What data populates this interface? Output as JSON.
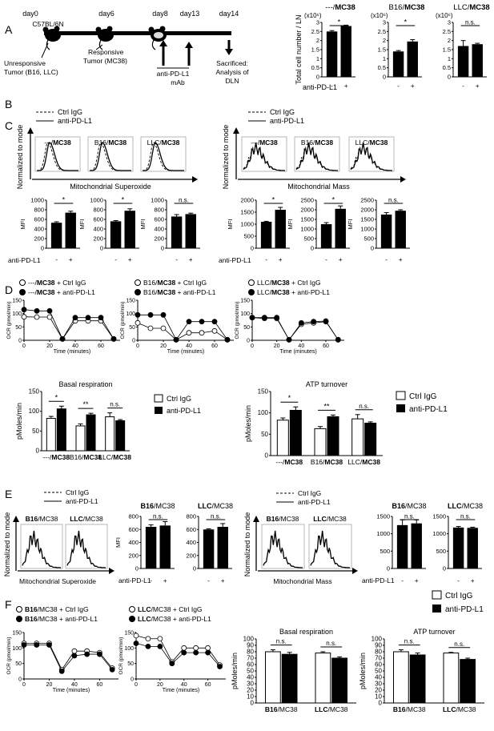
{
  "panel_letters": [
    "A",
    "B",
    "C",
    "D",
    "E",
    "F"
  ],
  "A": {
    "days": [
      "day0",
      "day6",
      "day8",
      "day13",
      "day14"
    ],
    "mouse_strain": "C57BL/6N",
    "unresponsive": [
      "Unresponsive",
      "Tumor (B16, LLC)"
    ],
    "responsive": [
      "Responsive",
      "Tumor (MC38)"
    ],
    "antibody": [
      "anti-PD-L1",
      "mAb"
    ],
    "sacrificed": [
      "Sacrificed:",
      "Analysis of",
      "DLN"
    ]
  },
  "common": {
    "anti_pdl1": "anti-PD-L1",
    "ctrl_igg": "Ctrl IgG",
    "minus": "-",
    "plus": "+",
    "ns": "n.s.",
    "star": "*",
    "double_star": "**",
    "mfi": "MFI",
    "normalized_to_mode": "Normalized to mode",
    "ocr_label": "OCR (pmol/min)",
    "time_label": "Time (minutes)",
    "pmoles_label": "pMoles/min",
    "x10_6": "(x10⁶)"
  },
  "B": {
    "ylabel": "Total cell number / LN",
    "titles": [
      [
        "---/",
        "MC38"
      ],
      [
        "B16/",
        "MC38"
      ],
      [
        "LLC/",
        "MC38"
      ]
    ],
    "x_caption": "anti-PD-L1"
  },
  "C": {
    "legend": [
      "Ctrl IgG",
      "anti-PD-L1"
    ],
    "hist_titles": [
      [
        "---/",
        "MC38"
      ],
      [
        "B16/",
        "MC38"
      ],
      [
        "LLC/",
        "MC38"
      ]
    ],
    "xlabel_left": "Mitochondrial Superoxide",
    "xlabel_right": "Mitochondrial Mass",
    "x_caption": "anti-PD-L1"
  },
  "D": {
    "legends": [
      [
        [
          "---/",
          "MC38",
          " + Ctrl IgG"
        ],
        [
          "---/",
          "MC38",
          " + anti-PD-L1"
        ]
      ],
      [
        [
          "B16/",
          "MC38",
          " + Ctrl IgG"
        ],
        [
          "B16/",
          "MC38",
          " + anti-PD-L1"
        ]
      ],
      [
        [
          "LLC/",
          "MC38",
          " + Ctrl IgG"
        ],
        [
          "LLC/",
          "MC38",
          " + anti-PD-L1"
        ]
      ]
    ],
    "basal_title": "Basal respiration",
    "atp_title": "ATP turnover",
    "group_labels": [
      [
        "---/",
        "MC38"
      ],
      [
        "B16/",
        "MC38"
      ],
      [
        "LLC/",
        "MC38"
      ]
    ]
  },
  "E": {
    "legend": [
      "Ctrl IgG",
      "anti-PD-L1"
    ],
    "hist_titles": [
      [
        "B16",
        "/MC38"
      ],
      [
        "LLC",
        "/MC38"
      ]
    ],
    "xlabel_left": "Mitochondrial Superoxide",
    "xlabel_right": "Mitochondrial Mass",
    "bar_titles": [
      [
        "B16",
        "/MC38"
      ],
      [
        "LLC",
        "/MC38"
      ]
    ],
    "x_caption": "anti-PD-L1"
  },
  "F": {
    "legends": [
      [
        [
          "B16",
          "/MC38 + Ctrl IgG"
        ],
        [
          "B16",
          "/MC38 + anti-PD-L1"
        ]
      ],
      [
        [
          "LLC",
          "/MC38 + Ctrl IgG"
        ],
        [
          "LLC",
          "/MC38 + anti-PD-L1"
        ]
      ]
    ],
    "basal_title": "Basal respiration",
    "atp_title": "ATP turnover",
    "group_labels": [
      [
        "B16",
        "/MC38"
      ],
      [
        "LLC",
        "/MC38"
      ]
    ],
    "legend": [
      "Ctrl IgG",
      "anti-PD-L1"
    ]
  },
  "chart_data": [
    {
      "id": "B1",
      "type": "bar",
      "title": "---/MC38",
      "categories": [
        "-",
        "+"
      ],
      "values": [
        2.5,
        2.8
      ],
      "errors": [
        0.05,
        0.05
      ],
      "ylim": [
        0,
        3
      ],
      "ticks": [
        0,
        0.5,
        1,
        1.5,
        2,
        2.5,
        3
      ],
      "yunit": "(x10⁶)",
      "sig": "*"
    },
    {
      "id": "B2",
      "type": "bar",
      "title": "B16/MC38",
      "categories": [
        "-",
        "+"
      ],
      "values": [
        1.4,
        1.95
      ],
      "errors": [
        0.05,
        0.1
      ],
      "ylim": [
        0,
        3
      ],
      "ticks": [
        0,
        0.5,
        1,
        1.5,
        2,
        2.5,
        3
      ],
      "yunit": "(x10⁶)",
      "sig": "*"
    },
    {
      "id": "B3",
      "type": "bar",
      "title": "LLC/MC38",
      "categories": [
        "-",
        "+"
      ],
      "values": [
        1.7,
        1.8
      ],
      "errors": [
        0.3,
        0.05
      ],
      "ylim": [
        0,
        3
      ],
      "ticks": [
        0,
        0.5,
        1,
        1.5,
        2,
        2.5,
        3
      ],
      "yunit": "(x10⁶)",
      "sig": "n.s."
    },
    {
      "id": "C1",
      "type": "bar",
      "ylabel": "MFI",
      "categories": [
        "-",
        "+"
      ],
      "values": [
        530,
        740
      ],
      "errors": [
        20,
        30
      ],
      "ylim": [
        0,
        1000
      ],
      "ticks": [
        0,
        200,
        400,
        600,
        800,
        1000
      ],
      "sig": "*"
    },
    {
      "id": "C2",
      "type": "bar",
      "ylabel": "MFI",
      "categories": [
        "-",
        "+"
      ],
      "values": [
        560,
        780
      ],
      "errors": [
        15,
        40
      ],
      "ylim": [
        0,
        1000
      ],
      "ticks": [
        0,
        200,
        400,
        600,
        800,
        1000
      ],
      "sig": "*"
    },
    {
      "id": "C3",
      "type": "bar",
      "ylabel": "MFI",
      "categories": [
        "-",
        "+"
      ],
      "values": [
        660,
        710
      ],
      "errors": [
        40,
        20
      ],
      "ylim": [
        0,
        1000
      ],
      "ticks": [
        0,
        200,
        400,
        600,
        800,
        1000
      ],
      "sig": "n.s."
    },
    {
      "id": "C4",
      "type": "bar",
      "ylabel": "MFI",
      "categories": [
        "-",
        "+"
      ],
      "values": [
        1100,
        1600
      ],
      "errors": [
        20,
        100
      ],
      "ylim": [
        0,
        2000
      ],
      "ticks": [
        0,
        500,
        1000,
        1500,
        2000
      ],
      "sig": "*"
    },
    {
      "id": "C5",
      "type": "bar",
      "ylabel": "MFI",
      "categories": [
        "-",
        "+"
      ],
      "values": [
        1250,
        2050
      ],
      "errors": [
        80,
        150
      ],
      "ylim": [
        0,
        2500
      ],
      "ticks": [
        0,
        500,
        1000,
        1500,
        2000,
        2500
      ],
      "sig": "*"
    },
    {
      "id": "C6",
      "type": "bar",
      "ylabel": "MFI",
      "categories": [
        "-",
        "+"
      ],
      "values": [
        1750,
        1950
      ],
      "errors": [
        100,
        50
      ],
      "ylim": [
        0,
        2500
      ],
      "ticks": [
        0,
        500,
        1000,
        1500,
        2000,
        2500
      ],
      "sig": "n.s."
    },
    {
      "id": "D1",
      "type": "line",
      "x": [
        0,
        10,
        20,
        30,
        40,
        50,
        60,
        70
      ],
      "series": [
        {
          "name": "Ctrl IgG",
          "values": [
            88,
            87,
            87,
            5,
            73,
            73,
            73,
            5
          ]
        },
        {
          "name": "anti-PD-L1",
          "values": [
            115,
            110,
            110,
            5,
            85,
            85,
            85,
            5
          ]
        }
      ],
      "ylim": [
        0,
        150
      ],
      "ticks": [
        0,
        50,
        100,
        150
      ],
      "xticks": [
        0,
        20,
        40,
        60
      ]
    },
    {
      "id": "D2",
      "type": "line",
      "x": [
        0,
        10,
        20,
        30,
        40,
        50,
        60,
        70
      ],
      "series": [
        {
          "name": "Ctrl IgG",
          "values": [
            65,
            45,
            45,
            2,
            28,
            28,
            35,
            2
          ]
        },
        {
          "name": "anti-PD-L1",
          "values": [
            95,
            95,
            95,
            2,
            70,
            70,
            70,
            2
          ]
        }
      ],
      "ylim": [
        0,
        150
      ],
      "ticks": [
        0,
        50,
        100,
        150
      ],
      "xticks": [
        0,
        20,
        40,
        60
      ]
    },
    {
      "id": "D3",
      "type": "line",
      "x": [
        0,
        10,
        20,
        30,
        40,
        50,
        60,
        70
      ],
      "series": [
        {
          "name": "Ctrl IgG",
          "values": [
            85,
            82,
            82,
            2,
            60,
            65,
            70,
            2
          ]
        },
        {
          "name": "anti-PD-L1",
          "values": [
            85,
            85,
            85,
            2,
            65,
            70,
            72,
            2
          ]
        }
      ],
      "ylim": [
        0,
        150
      ],
      "ticks": [
        0,
        50,
        100,
        150
      ],
      "xticks": [
        0,
        20,
        40,
        60
      ]
    },
    {
      "id": "D4",
      "type": "bar",
      "title": "Basal respiration",
      "ylabel": "pMoles/min",
      "categories": [
        "---/MC38",
        "B16/MC38",
        "LLC/MC38"
      ],
      "series": [
        {
          "name": "Ctrl IgG",
          "values": [
            82,
            63,
            86
          ],
          "errors": [
            5,
            5,
            10
          ]
        },
        {
          "name": "anti-PD-L1",
          "values": [
            106,
            91,
            76
          ],
          "errors": [
            7,
            4,
            3
          ]
        }
      ],
      "ylim": [
        0,
        150
      ],
      "ticks": [
        0,
        50,
        100,
        150
      ],
      "sig": [
        "*",
        "**",
        "n.s."
      ]
    },
    {
      "id": "D5",
      "type": "bar",
      "title": "ATP turnover",
      "ylabel": "pMoles/min",
      "categories": [
        "---/MC38",
        "B16/MC38",
        "LLC/MC38"
      ],
      "series": [
        {
          "name": "Ctrl IgG",
          "values": [
            83,
            63,
            86
          ],
          "errors": [
            5,
            5,
            10
          ]
        },
        {
          "name": "anti-PD-L1",
          "values": [
            106,
            91,
            76
          ],
          "errors": [
            8,
            4,
            3
          ]
        }
      ],
      "ylim": [
        0,
        150
      ],
      "ticks": [
        0,
        50,
        100,
        150
      ],
      "sig": [
        "*",
        "**",
        "n.s."
      ]
    },
    {
      "id": "E1",
      "type": "bar",
      "title": "B16/MC38",
      "ylabel": "MFI",
      "categories": [
        "-",
        "+"
      ],
      "values": [
        640,
        660
      ],
      "errors": [
        30,
        60
      ],
      "ylim": [
        0,
        800
      ],
      "ticks": [
        0,
        200,
        400,
        600,
        800
      ],
      "sig": "n.s."
    },
    {
      "id": "E2",
      "type": "bar",
      "title": "LLC/MC38",
      "categories": [
        "-",
        "+"
      ],
      "values": [
        600,
        640
      ],
      "errors": [
        10,
        50
      ],
      "ylim": [
        0,
        800
      ],
      "ticks": [
        0,
        200,
        400,
        600,
        800
      ],
      "sig": "n.s."
    },
    {
      "id": "E3",
      "type": "bar",
      "title": "B16/MC38",
      "categories": [
        "-",
        "+"
      ],
      "values": [
        1250,
        1300
      ],
      "errors": [
        150,
        100
      ],
      "ylim": [
        0,
        1500
      ],
      "ticks": [
        0,
        500,
        1000,
        1500
      ],
      "sig": "n.s."
    },
    {
      "id": "E4",
      "type": "bar",
      "title": "LLC/MC38",
      "categories": [
        "-",
        "+"
      ],
      "values": [
        1180,
        1170
      ],
      "errors": [
        30,
        20
      ],
      "ylim": [
        0,
        1500
      ],
      "ticks": [
        0,
        500,
        1000,
        1500
      ],
      "sig": "n.s."
    },
    {
      "id": "F1",
      "type": "line",
      "x": [
        0,
        10,
        20,
        30,
        40,
        50,
        60,
        70
      ],
      "series": [
        {
          "name": "Ctrl IgG",
          "values": [
            115,
            115,
            115,
            30,
            90,
            90,
            85,
            35
          ]
        },
        {
          "name": "anti-PD-L1",
          "values": [
            110,
            110,
            110,
            25,
            75,
            80,
            80,
            30
          ]
        }
      ],
      "ylim": [
        0,
        150
      ],
      "ticks": [
        0,
        50,
        100,
        150
      ],
      "xticks": [
        0,
        20,
        40,
        60
      ]
    },
    {
      "id": "F2",
      "type": "line",
      "x": [
        0,
        10,
        20,
        30,
        40,
        50,
        60,
        70
      ],
      "series": [
        {
          "name": "Ctrl IgG",
          "values": [
            140,
            130,
            130,
            55,
            100,
            100,
            100,
            45
          ]
        },
        {
          "name": "anti-PD-L1",
          "values": [
            115,
            105,
            105,
            50,
            85,
            85,
            85,
            40
          ]
        }
      ],
      "ylim": [
        0,
        150
      ],
      "ticks": [
        0,
        50,
        100,
        150
      ],
      "xticks": [
        0,
        20,
        40,
        60
      ]
    },
    {
      "id": "F3",
      "type": "bar",
      "title": "Basal respiration",
      "ylabel": "pMoles/min",
      "categories": [
        "B16/MC38",
        "LLC/MC38"
      ],
      "series": [
        {
          "name": "Ctrl IgG",
          "values": [
            80,
            78
          ],
          "errors": [
            3,
            2
          ]
        },
        {
          "name": "anti-PD-L1",
          "values": [
            76,
            70
          ],
          "errors": [
            3,
            2
          ]
        }
      ],
      "ylim": [
        0,
        100
      ],
      "ticks": [
        0,
        10,
        20,
        30,
        40,
        50,
        60,
        70,
        80,
        90,
        100
      ],
      "sig": [
        "n.s.",
        "n.s."
      ]
    },
    {
      "id": "F4",
      "type": "bar",
      "title": "ATP turnover",
      "ylabel": "pMoles/min",
      "categories": [
        "B16/MC38",
        "LLC/MC38"
      ],
      "series": [
        {
          "name": "Ctrl IgG",
          "values": [
            80,
            78
          ],
          "errors": [
            3,
            1
          ]
        },
        {
          "name": "anti-PD-L1",
          "values": [
            75,
            68
          ],
          "errors": [
            3,
            2
          ]
        }
      ],
      "ylim": [
        0,
        100
      ],
      "ticks": [
        0,
        10,
        20,
        30,
        40,
        50,
        60,
        70,
        80,
        90,
        100
      ],
      "sig": [
        "n.s.",
        "n.s."
      ]
    }
  ]
}
